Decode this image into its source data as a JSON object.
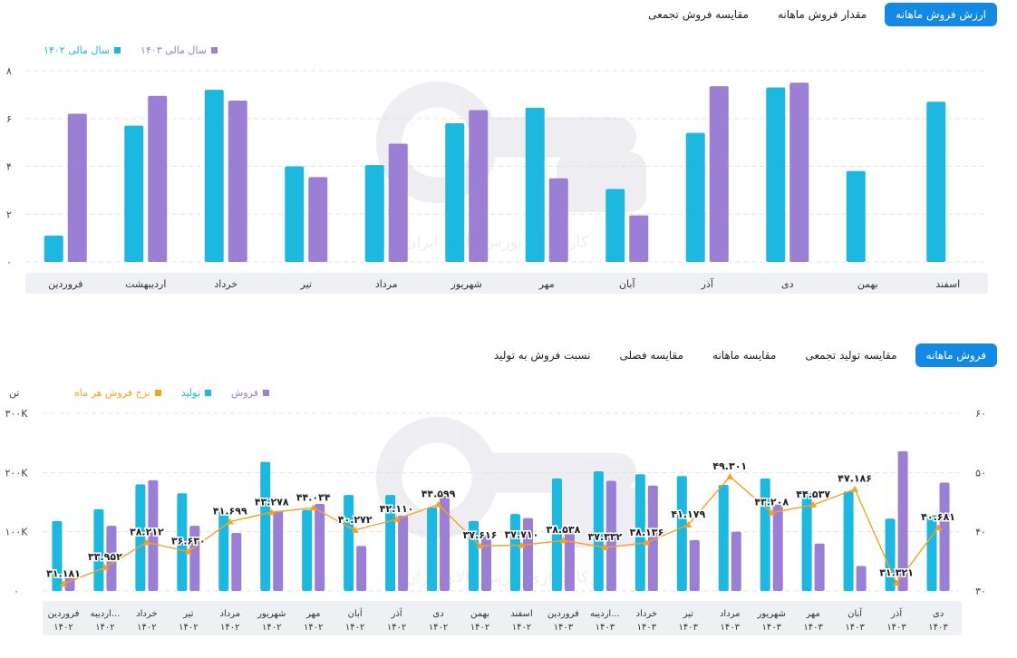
{
  "top_tabs": [
    {
      "label": "ارزش فروش ماهانه",
      "active": true
    },
    {
      "label": "مقدار فروش ماهانه",
      "active": false
    },
    {
      "label": "مقایسه فروش تجمعی",
      "active": false
    }
  ],
  "bottom_tabs": [
    {
      "label": "فروش ماهانه",
      "active": true
    },
    {
      "label": "مقایسه تولید تجمعی",
      "active": false
    },
    {
      "label": "مقایسه ماهانه",
      "active": false
    },
    {
      "label": "مقایسه فصلی",
      "active": false
    },
    {
      "label": "نسبت فروش به تولید",
      "active": false
    }
  ],
  "colors": {
    "cyan": "#1cb8e0",
    "purple": "#9a7fd4",
    "orange": "#f6a221",
    "axis_band": "#eef0f4",
    "tab_active": "#1389e6"
  },
  "watermark_text": "کارگزاری بورس کالای ایران",
  "chart_data": [
    {
      "type": "bar",
      "legend": [
        {
          "name": "سال مالی ۱۴۰۳",
          "color": "#9a7fd4"
        },
        {
          "name": "سال مالی ۱۴۰۲",
          "color": "#1cb8e0"
        }
      ],
      "categories": [
        "فروردین",
        "اردیبهشت",
        "خرداد",
        "تیر",
        "مرداد",
        "شهریور",
        "مهر",
        "آبان",
        "آذر",
        "دی",
        "بهمن",
        "اسفند"
      ],
      "series": [
        {
          "name": "سال مالی ۱۴۰۲",
          "color": "#1cb8e0",
          "values": [
            1.1,
            5.7,
            7.2,
            4.0,
            4.05,
            5.8,
            6.45,
            3.05,
            5.4,
            7.3,
            3.8,
            6.7
          ]
        },
        {
          "name": "سال مالی ۱۴۰۳",
          "color": "#9a7fd4",
          "values": [
            6.2,
            6.95,
            6.75,
            3.55,
            4.95,
            6.35,
            3.5,
            1.95,
            7.35,
            7.5,
            null,
            null
          ]
        }
      ],
      "ylim": [
        0,
        8
      ],
      "yticks": [
        "۰",
        "۲",
        "۴",
        "۶",
        "۸"
      ],
      "grid": true,
      "legend_position": "top-left"
    },
    {
      "type": "bar",
      "legend": [
        {
          "name": "فروش",
          "color": "#9a7fd4"
        },
        {
          "name": "تولید",
          "color": "#1cb8e0"
        },
        {
          "name": "نرخ فروش هر ماه",
          "color": "#f6a221"
        }
      ],
      "categories": [
        [
          "فروردین",
          "۱۴۰۲"
        ],
        [
          "اردیبه...",
          "۱۴۰۲"
        ],
        [
          "خرداد",
          "۱۴۰۲"
        ],
        [
          "تیر",
          "۱۴۰۲"
        ],
        [
          "مرداد",
          "۱۴۰۲"
        ],
        [
          "شهریور",
          "۱۴۰۲"
        ],
        [
          "مهر",
          "۱۴۰۲"
        ],
        [
          "آبان",
          "۱۴۰۲"
        ],
        [
          "آذر",
          "۱۴۰۲"
        ],
        [
          "دی",
          "۱۴۰۲"
        ],
        [
          "بهمن",
          "۱۴۰۲"
        ],
        [
          "اسفند",
          "۱۴۰۲"
        ],
        [
          "فروردین",
          "۱۴۰۳"
        ],
        [
          "اردیبه...",
          "۱۴۰۳"
        ],
        [
          "خرداد",
          "۱۴۰۳"
        ],
        [
          "تیر",
          "۱۴۰۳"
        ],
        [
          "مرداد",
          "۱۴۰۳"
        ],
        [
          "شهریور",
          "۱۴۰۳"
        ],
        [
          "مهر",
          "۱۴۰۳"
        ],
        [
          "آبان",
          "۱۴۰۳"
        ],
        [
          "آذر",
          "۱۴۰۳"
        ],
        [
          "دی",
          "۱۴۰۳"
        ]
      ],
      "series": [
        {
          "name": "تولید",
          "color": "#1cb8e0",
          "axis": "left",
          "values": [
            118000,
            138000,
            180000,
            165000,
            135000,
            218000,
            137000,
            162000,
            162000,
            141000,
            118000,
            130000,
            190000,
            202000,
            197000,
            194000,
            179000,
            190000,
            165000,
            168000,
            122000,
            128000
          ]
        },
        {
          "name": "فروش",
          "color": "#9a7fd4",
          "axis": "left",
          "values": [
            29000,
            110000,
            187000,
            110000,
            98000,
            135000,
            147000,
            76000,
            127000,
            164000,
            94000,
            123000,
            101000,
            186000,
            178000,
            86000,
            100000,
            146000,
            80000,
            42000,
            236000,
            183000
          ]
        },
        {
          "name": "نرخ فروش هر ماه",
          "color": "#f6a221",
          "axis": "right",
          "values": [
            31.181,
            33.952,
            38.212,
            36.63,
            41.699,
            43.278,
            44.034,
            40.272,
            42.11,
            44.599,
            37.616,
            37.71,
            38.538,
            37.332,
            38.136,
            41.179,
            49.301,
            43.208,
            44.537,
            47.186,
            31.321,
            40.681
          ],
          "labels": [
            "۳۱.۱۸۱",
            "۳۳.۹۵۲",
            "۳۸.۲۱۲",
            "۳۶.۶۳۰",
            "۴۱.۶۹۹",
            "۴۳.۲۷۸",
            "۴۴.۰۳۴",
            "۴۰.۲۷۲",
            "۴۲.۱۱۰",
            "۴۴.۵۹۹",
            "۳۷.۶۱۶",
            "۳۷.۷۱۰",
            "۳۸.۵۳۸",
            "۳۷.۳۳۲",
            "۳۸.۱۳۶",
            "۴۱.۱۷۹",
            "۴۹.۳۰۱",
            "۴۳.۲۰۸",
            "۴۴.۵۳۷",
            "۴۷.۱۸۶",
            "۳۱.۳۲۱",
            "۴۰.۶۸۱"
          ]
        }
      ],
      "ylim_left": [
        0,
        300000
      ],
      "yticks_left": [
        "۰",
        "۱۰۰K",
        "۲۰۰K",
        "۳۰۰K"
      ],
      "ylabel_left": "تن",
      "ylim_right": [
        30,
        60
      ],
      "yticks_right": [
        "۳۰",
        "۴۰",
        "۵۰",
        "۶۰"
      ],
      "grid": true,
      "legend_position": "top-left"
    }
  ]
}
